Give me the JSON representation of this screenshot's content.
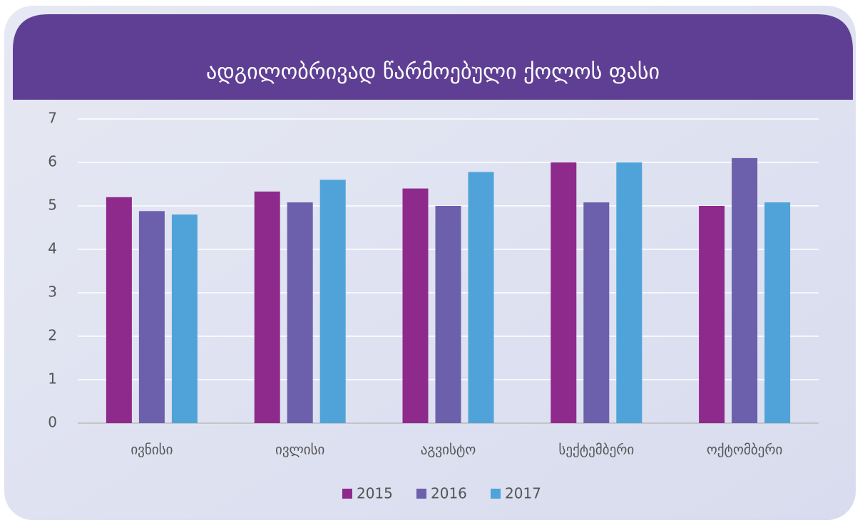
{
  "chart_data": {
    "type": "bar",
    "title": "ადგილობრივად წარმოებული ქოლოს ფასი",
    "categories": [
      "ივნისი",
      "ივლისი",
      "აგვისტო",
      "სექტემბერი",
      "ოქტომბერი"
    ],
    "series": [
      {
        "name": "2015",
        "color": "#8e2a8c",
        "values": [
          5.2,
          5.33,
          5.4,
          6.0,
          5.0
        ]
      },
      {
        "name": "2016",
        "color": "#6c5fac",
        "values": [
          4.88,
          5.08,
          5.0,
          5.08,
          6.1
        ]
      },
      {
        "name": "2017",
        "color": "#4fa3d9",
        "values": [
          4.8,
          5.6,
          5.78,
          6.0,
          5.08
        ]
      }
    ],
    "ylim": [
      0,
      7
    ],
    "yticks": [
      0,
      1,
      2,
      3,
      4,
      5,
      6,
      7
    ],
    "grid": true,
    "legend": "bottom"
  }
}
